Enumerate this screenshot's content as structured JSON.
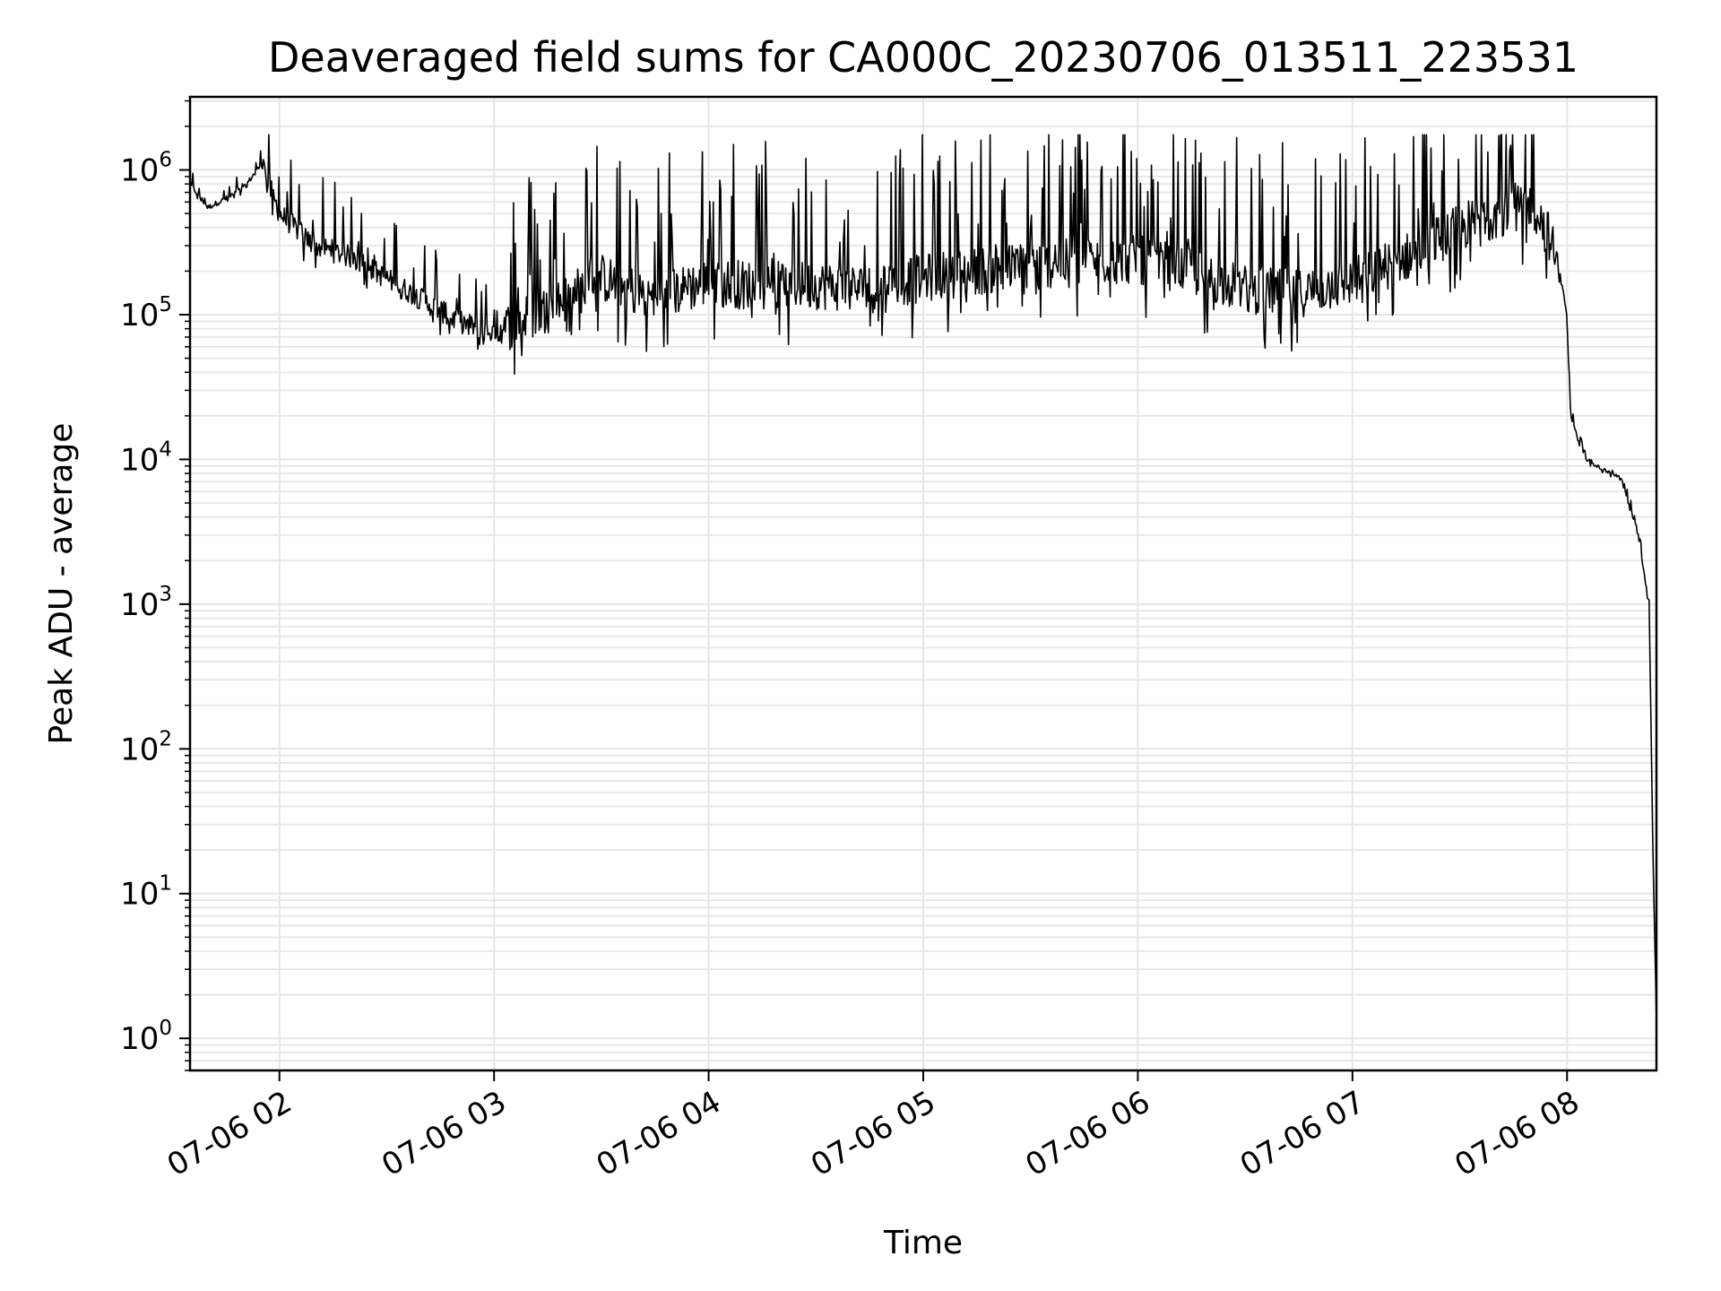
{
  "chart_data": {
    "type": "line",
    "title": "Deaveraged field sums for CA000C_20230706_013511_223531",
    "xlabel": "Time",
    "ylabel": "Peak ADU - average",
    "yscale": "log",
    "grid": true,
    "line_color": "#000000",
    "grid_color": "#e6e6e6",
    "xlim": [
      "07-06 01:35",
      "07-06 08:25"
    ],
    "ylim": [
      0.6,
      3200000
    ],
    "x_ticks": [
      "07-06 02",
      "07-06 03",
      "07-06 04",
      "07-06 05",
      "07-06 06",
      "07-06 07",
      "07-06 08"
    ],
    "y_ticks": [
      {
        "base": "10",
        "exp": "0",
        "value": 1
      },
      {
        "base": "10",
        "exp": "1",
        "value": 10
      },
      {
        "base": "10",
        "exp": "2",
        "value": 100
      },
      {
        "base": "10",
        "exp": "3",
        "value": 1000
      },
      {
        "base": "10",
        "exp": "4",
        "value": 10000
      },
      {
        "base": "10",
        "exp": "5",
        "value": 100000
      },
      {
        "base": "10",
        "exp": "6",
        "value": 1000000
      }
    ],
    "series": [
      {
        "x": [
          "07-06 01:35",
          "07-06 01:40",
          "07-06 01:46",
          "07-06 01:50",
          "07-06 01:55",
          "07-06 02:00",
          "07-06 02:10",
          "07-06 02:20",
          "07-06 02:35",
          "07-06 02:50",
          "07-06 03:00",
          "07-06 03:15",
          "07-06 03:30",
          "07-06 03:45",
          "07-06 04:00",
          "07-06 04:15",
          "07-06 04:30",
          "07-06 04:45",
          "07-06 05:00",
          "07-06 05:15",
          "07-06 05:30",
          "07-06 05:45",
          "07-06 06:00",
          "07-06 06:15",
          "07-06 06:30",
          "07-06 06:45",
          "07-06 07:00",
          "07-06 07:15",
          "07-06 07:30",
          "07-06 07:40",
          "07-06 07:50",
          "07-06 07:55",
          "07-06 07:59",
          "07-06 08:00",
          "07-06 08:01",
          "07-06 08:05",
          "07-06 08:10",
          "07-06 08:15",
          "07-06 08:20",
          "07-06 08:23",
          "07-06 08:24",
          "07-06 08:25"
        ],
        "y": [
          800000,
          550000,
          650000,
          750000,
          1100000,
          500000,
          300000,
          250000,
          150000,
          90000,
          75000,
          110000,
          180000,
          130000,
          170000,
          160000,
          160000,
          150000,
          180000,
          200000,
          220000,
          230000,
          240000,
          200000,
          150000,
          140000,
          170000,
          250000,
          400000,
          500000,
          600000,
          350000,
          150000,
          90000,
          20000,
          10000,
          8500,
          7500,
          3000,
          900,
          20,
          1.3
        ]
      }
    ]
  }
}
